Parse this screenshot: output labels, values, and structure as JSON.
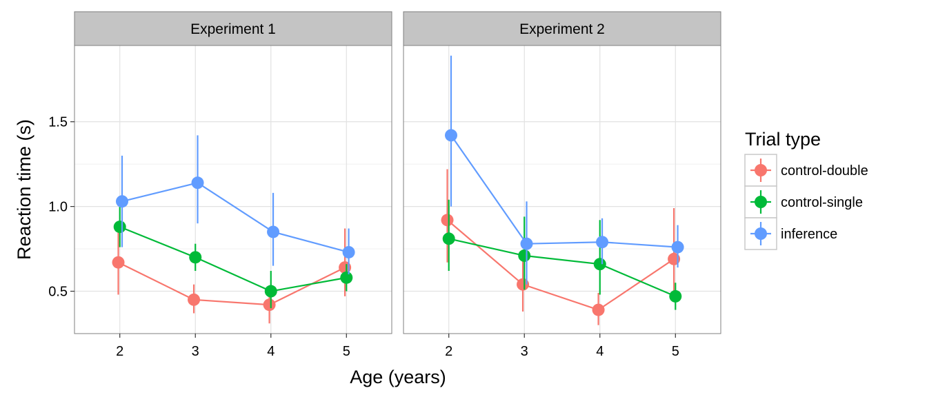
{
  "chart_data": {
    "type": "line",
    "facets": [
      "Experiment 1",
      "Experiment 2"
    ],
    "xlabel": "Age (years)",
    "ylabel": "Reaction time (s)",
    "x": [
      2,
      3,
      4,
      5
    ],
    "xlim": [
      1.4,
      5.6
    ],
    "ylim": [
      0.25,
      1.95
    ],
    "yticks": [
      0.5,
      1.0,
      1.5
    ],
    "ytick_labels": [
      "0.5",
      "1.0",
      "1.5"
    ],
    "grid": true,
    "legend": {
      "title": "Trial type",
      "position": "right"
    },
    "series": [
      {
        "name": "control-double",
        "color": "#F8766D",
        "offset": -0.02,
        "panels": [
          {
            "y": [
              0.67,
              0.45,
              0.42,
              0.64
            ],
            "lo": [
              0.48,
              0.37,
              0.31,
              0.47
            ],
            "hi": [
              0.9,
              0.54,
              0.53,
              0.87
            ]
          },
          {
            "y": [
              0.92,
              0.54,
              0.39,
              0.69
            ],
            "lo": [
              0.67,
              0.38,
              0.3,
              0.45
            ],
            "hi": [
              1.22,
              0.69,
              0.49,
              0.99
            ]
          }
        ]
      },
      {
        "name": "control-single",
        "color": "#00BA38",
        "offset": 0.0,
        "panels": [
          {
            "y": [
              0.88,
              0.7,
              0.5,
              0.58
            ],
            "lo": [
              0.76,
              0.62,
              0.4,
              0.5
            ],
            "hi": [
              1.0,
              0.78,
              0.62,
              0.66
            ]
          },
          {
            "y": [
              0.81,
              0.71,
              0.66,
              0.47
            ],
            "lo": [
              0.62,
              0.51,
              0.48,
              0.39
            ],
            "hi": [
              1.04,
              0.94,
              0.92,
              0.55
            ]
          }
        ]
      },
      {
        "name": "inference",
        "color": "#619CFF",
        "offset": 0.03,
        "panels": [
          {
            "y": [
              1.03,
              1.14,
              0.85,
              0.73
            ],
            "lo": [
              0.76,
              0.9,
              0.65,
              0.6
            ],
            "hi": [
              1.3,
              1.42,
              1.08,
              0.87
            ]
          },
          {
            "y": [
              1.42,
              0.78,
              0.79,
              0.76
            ],
            "lo": [
              1.0,
              0.54,
              0.66,
              0.64
            ],
            "hi": [
              1.89,
              1.03,
              0.93,
              0.89
            ]
          }
        ]
      }
    ]
  }
}
